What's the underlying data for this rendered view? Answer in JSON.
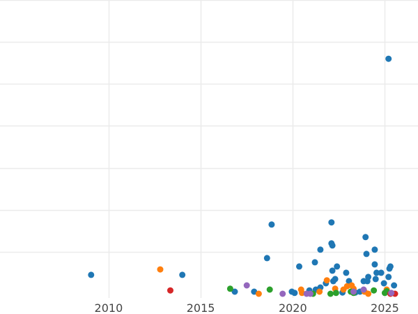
{
  "chart_data": {
    "type": "scatter",
    "title": "",
    "xlabel": "",
    "ylabel": "",
    "grid": true,
    "legend": "none",
    "xlim": [
      2004.1,
      2026.8
    ],
    "ylim": [
      -0.1,
      7.0
    ],
    "x_ticks": [
      2010,
      2015,
      2020,
      2025
    ],
    "x_tick_labels": [
      "2010",
      "2015",
      "2020",
      "2025"
    ],
    "y_grid": [
      1,
      2,
      3,
      4,
      5,
      6,
      7
    ],
    "series": [
      {
        "color": "#1f77b4",
        "points": [
          [
            2009.05,
            0.45
          ],
          [
            2014.0,
            0.45
          ],
          [
            2016.85,
            0.05
          ],
          [
            2017.9,
            0.05
          ],
          [
            2018.6,
            0.85
          ],
          [
            2018.85,
            1.65
          ],
          [
            2019.95,
            0.05
          ],
          [
            2020.1,
            0.02
          ],
          [
            2020.35,
            0.65
          ],
          [
            2020.9,
            0.08
          ],
          [
            2021.2,
            0.75
          ],
          [
            2021.25,
            0.1
          ],
          [
            2021.5,
            1.05
          ],
          [
            2021.5,
            0.15
          ],
          [
            2021.8,
            0.25
          ],
          [
            2022.1,
            1.2
          ],
          [
            2022.1,
            1.7
          ],
          [
            2022.15,
            1.15
          ],
          [
            2022.15,
            0.55
          ],
          [
            2022.2,
            0.3
          ],
          [
            2022.3,
            0.35
          ],
          [
            2022.4,
            0.65
          ],
          [
            2022.7,
            0.03
          ],
          [
            2022.9,
            0.5
          ],
          [
            2023.05,
            0.3
          ],
          [
            2023.2,
            0.05
          ],
          [
            2023.4,
            0.03
          ],
          [
            2023.65,
            0.05
          ],
          [
            2023.85,
            0.3
          ],
          [
            2023.95,
            1.35
          ],
          [
            2024.0,
            0.95
          ],
          [
            2024.05,
            0.3
          ],
          [
            2024.1,
            0.4
          ],
          [
            2024.45,
            1.05
          ],
          [
            2024.45,
            0.7
          ],
          [
            2024.5,
            0.35
          ],
          [
            2024.55,
            0.5
          ],
          [
            2024.8,
            0.5
          ],
          [
            2024.95,
            0.25
          ],
          [
            2025.2,
            0.4
          ],
          [
            2025.25,
            0.6
          ],
          [
            2025.3,
            0.65
          ],
          [
            2025.5,
            0.2
          ],
          [
            2025.2,
            5.6
          ]
        ]
      },
      {
        "color": "#ff7f0e",
        "points": [
          [
            2012.8,
            0.58
          ],
          [
            2018.15,
            0.0
          ],
          [
            2020.45,
            0.1
          ],
          [
            2020.5,
            0.02
          ],
          [
            2021.45,
            0.05
          ],
          [
            2021.85,
            0.32
          ],
          [
            2022.3,
            0.12
          ],
          [
            2022.75,
            0.1
          ],
          [
            2022.95,
            0.18
          ],
          [
            2023.2,
            0.2
          ],
          [
            2023.3,
            0.12
          ],
          [
            2023.9,
            0.05
          ],
          [
            2024.1,
            0.0
          ],
          [
            2025.1,
            0.1
          ]
        ]
      },
      {
        "color": "#2ca02c",
        "points": [
          [
            2016.6,
            0.12
          ],
          [
            2018.75,
            0.1
          ],
          [
            2021.1,
            0.0
          ],
          [
            2022.05,
            0.0
          ],
          [
            2022.35,
            0.02
          ],
          [
            2023.15,
            0.05
          ],
          [
            2023.3,
            0.02
          ],
          [
            2024.4,
            0.08
          ],
          [
            2025.0,
            0.02
          ],
          [
            2025.1,
            0.06
          ]
        ]
      },
      {
        "color": "#d62728",
        "points": [
          [
            2013.35,
            0.08
          ],
          [
            2025.3,
            0.0
          ],
          [
            2025.55,
            0.0
          ]
        ]
      },
      {
        "color": "#9467bd",
        "points": [
          [
            2017.5,
            0.2
          ],
          [
            2019.45,
            0.0
          ],
          [
            2020.75,
            0.0
          ],
          [
            2020.95,
            0.0
          ],
          [
            2023.3,
            0.05
          ],
          [
            2023.85,
            0.1
          ],
          [
            2025.35,
            0.02
          ]
        ]
      }
    ]
  }
}
